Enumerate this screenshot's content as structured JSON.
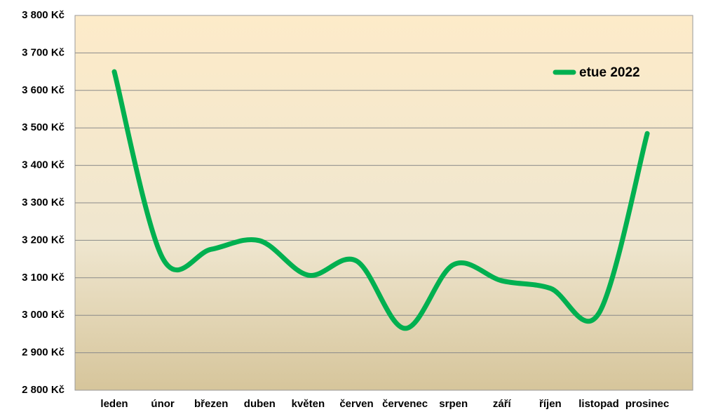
{
  "chart_data": {
    "type": "line",
    "categories": [
      "leden",
      "únor",
      "březen",
      "duben",
      "květen",
      "červen",
      "červenec",
      "srpen",
      "září",
      "říjen",
      "listopad",
      "prosinec"
    ],
    "series": [
      {
        "name": "etue 2022",
        "color": "#00b050",
        "values": [
          3650,
          3152,
          3176,
          3199,
          3107,
          3145,
          2965,
          3135,
          3092,
          3072,
          3005,
          3485
        ]
      }
    ],
    "ylim": [
      2800,
      3800
    ],
    "yticks": [
      {
        "value": 2800,
        "label": "2 800 Kč"
      },
      {
        "value": 2900,
        "label": "2 900 Kč"
      },
      {
        "value": 3000,
        "label": "3 000 Kč"
      },
      {
        "value": 3100,
        "label": "3 100 Kč"
      },
      {
        "value": 3200,
        "label": "3 200 Kč"
      },
      {
        "value": 3300,
        "label": "3 300 Kč"
      },
      {
        "value": 3400,
        "label": "3 400 Kč"
      },
      {
        "value": 3500,
        "label": "3 500 Kč"
      },
      {
        "value": 3600,
        "label": "3 600 Kč"
      },
      {
        "value": 3700,
        "label": "3 700 Kč"
      },
      {
        "value": 3800,
        "label": "3 800 Kč"
      }
    ],
    "grid": true,
    "legend": "upper right"
  }
}
